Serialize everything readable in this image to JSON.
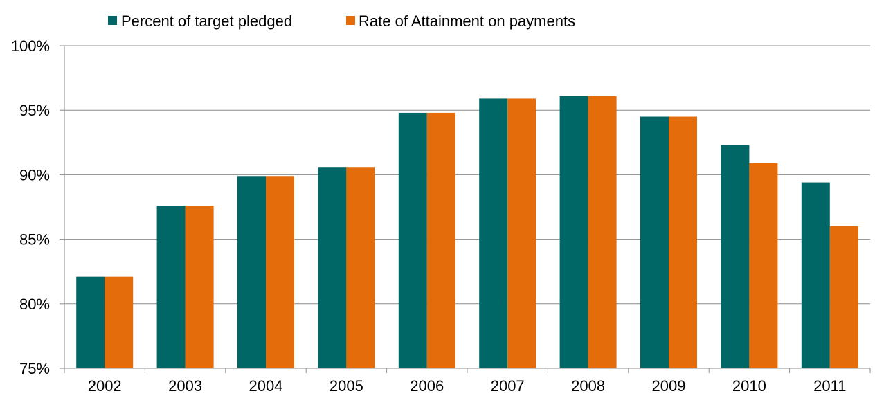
{
  "chart_data": {
    "type": "bar",
    "title": "",
    "xlabel": "",
    "ylabel": "",
    "categories": [
      "2002",
      "2003",
      "2004",
      "2005",
      "2006",
      "2007",
      "2008",
      "2009",
      "2010",
      "2011"
    ],
    "series": [
      {
        "name": "Percent of target pledged",
        "color": "#006666",
        "values": [
          82.1,
          87.6,
          89.9,
          90.6,
          94.8,
          95.9,
          96.1,
          94.5,
          92.3,
          89.4
        ]
      },
      {
        "name": "Rate of Attainment on payments",
        "color": "#E46C0A",
        "values": [
          82.1,
          87.6,
          89.9,
          90.6,
          94.8,
          95.9,
          96.1,
          94.5,
          90.9,
          86.0
        ]
      }
    ],
    "ylim": [
      75,
      100
    ],
    "yticks": [
      75,
      80,
      85,
      90,
      95,
      100
    ],
    "ytick_labels": [
      "75%",
      "80%",
      "85%",
      "90%",
      "95%",
      "100%"
    ],
    "grid": true,
    "legend_position": "top"
  }
}
